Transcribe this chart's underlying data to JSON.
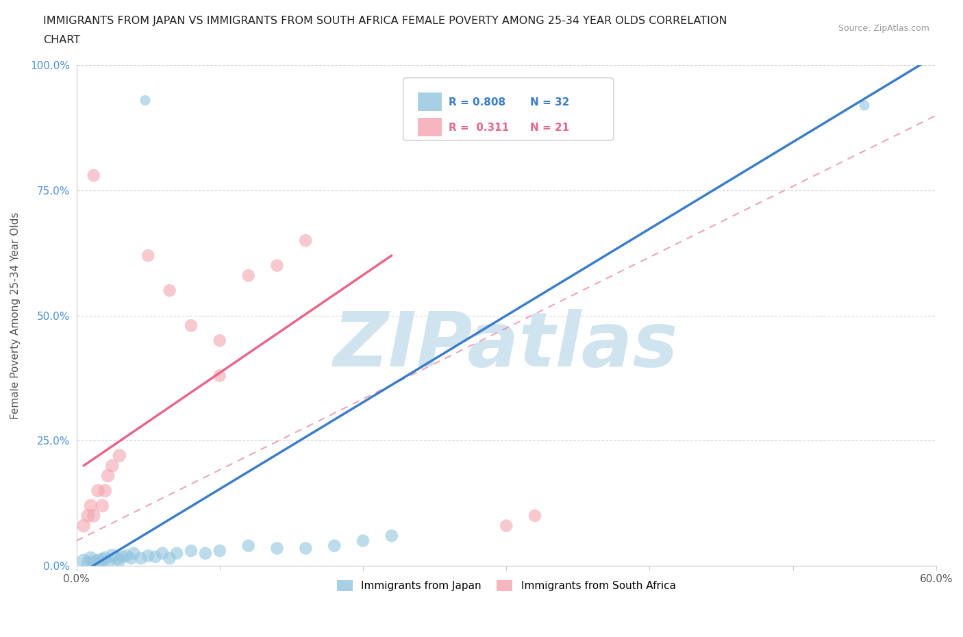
{
  "title_line1": "IMMIGRANTS FROM JAPAN VS IMMIGRANTS FROM SOUTH AFRICA FEMALE POVERTY AMONG 25-34 YEAR OLDS CORRELATION",
  "title_line2": "CHART",
  "source": "Source: ZipAtlas.com",
  "ylabel": "Female Poverty Among 25-34 Year Olds",
  "xlim": [
    0,
    0.6
  ],
  "ylim": [
    0,
    1.0
  ],
  "xticks": [
    0.0,
    0.1,
    0.2,
    0.3,
    0.4,
    0.5,
    0.6
  ],
  "yticks": [
    0.0,
    0.25,
    0.5,
    0.75,
    1.0
  ],
  "yticklabels": [
    "0.0%",
    "25.0%",
    "50.0%",
    "75.0%",
    "100.0%"
  ],
  "japan_color": "#92c5de",
  "sa_color": "#f4a4b0",
  "japan_line_color": "#3a7dc9",
  "sa_line_color": "#e8668a",
  "japan_R": 0.808,
  "japan_N": 32,
  "sa_R": 0.311,
  "sa_N": 21,
  "watermark": "ZIPatlas",
  "watermark_color": "#d0e4f0",
  "background_color": "#ffffff",
  "grid_color": "#cccccc",
  "japan_scatter": [
    [
      0.005,
      0.01
    ],
    [
      0.008,
      0.005
    ],
    [
      0.01,
      0.015
    ],
    [
      0.012,
      0.008
    ],
    [
      0.015,
      0.01
    ],
    [
      0.018,
      0.012
    ],
    [
      0.02,
      0.015
    ],
    [
      0.022,
      0.008
    ],
    [
      0.025,
      0.02
    ],
    [
      0.028,
      0.015
    ],
    [
      0.03,
      0.01
    ],
    [
      0.032,
      0.018
    ],
    [
      0.035,
      0.02
    ],
    [
      0.038,
      0.015
    ],
    [
      0.04,
      0.025
    ],
    [
      0.045,
      0.015
    ],
    [
      0.05,
      0.02
    ],
    [
      0.055,
      0.018
    ],
    [
      0.06,
      0.025
    ],
    [
      0.065,
      0.015
    ],
    [
      0.07,
      0.025
    ],
    [
      0.08,
      0.03
    ],
    [
      0.09,
      0.025
    ],
    [
      0.1,
      0.03
    ],
    [
      0.12,
      0.04
    ],
    [
      0.14,
      0.035
    ],
    [
      0.16,
      0.035
    ],
    [
      0.18,
      0.04
    ],
    [
      0.2,
      0.05
    ],
    [
      0.22,
      0.06
    ],
    [
      0.048,
      0.93
    ],
    [
      0.55,
      0.92
    ]
  ],
  "sa_scatter": [
    [
      0.005,
      0.08
    ],
    [
      0.008,
      0.1
    ],
    [
      0.01,
      0.12
    ],
    [
      0.012,
      0.1
    ],
    [
      0.015,
      0.15
    ],
    [
      0.018,
      0.12
    ],
    [
      0.02,
      0.15
    ],
    [
      0.022,
      0.18
    ],
    [
      0.025,
      0.2
    ],
    [
      0.03,
      0.22
    ],
    [
      0.012,
      0.78
    ],
    [
      0.05,
      0.62
    ],
    [
      0.065,
      0.55
    ],
    [
      0.08,
      0.48
    ],
    [
      0.1,
      0.38
    ],
    [
      0.1,
      0.45
    ],
    [
      0.12,
      0.58
    ],
    [
      0.14,
      0.6
    ],
    [
      0.16,
      0.65
    ],
    [
      0.32,
      0.1
    ],
    [
      0.3,
      0.08
    ]
  ],
  "japan_line": [
    [
      0.0,
      -0.02
    ],
    [
      0.6,
      1.02
    ]
  ],
  "sa_line_solid": [
    [
      0.005,
      0.2
    ],
    [
      0.22,
      0.62
    ]
  ],
  "sa_line_dashed": [
    [
      0.0,
      0.05
    ],
    [
      0.6,
      0.9
    ]
  ]
}
